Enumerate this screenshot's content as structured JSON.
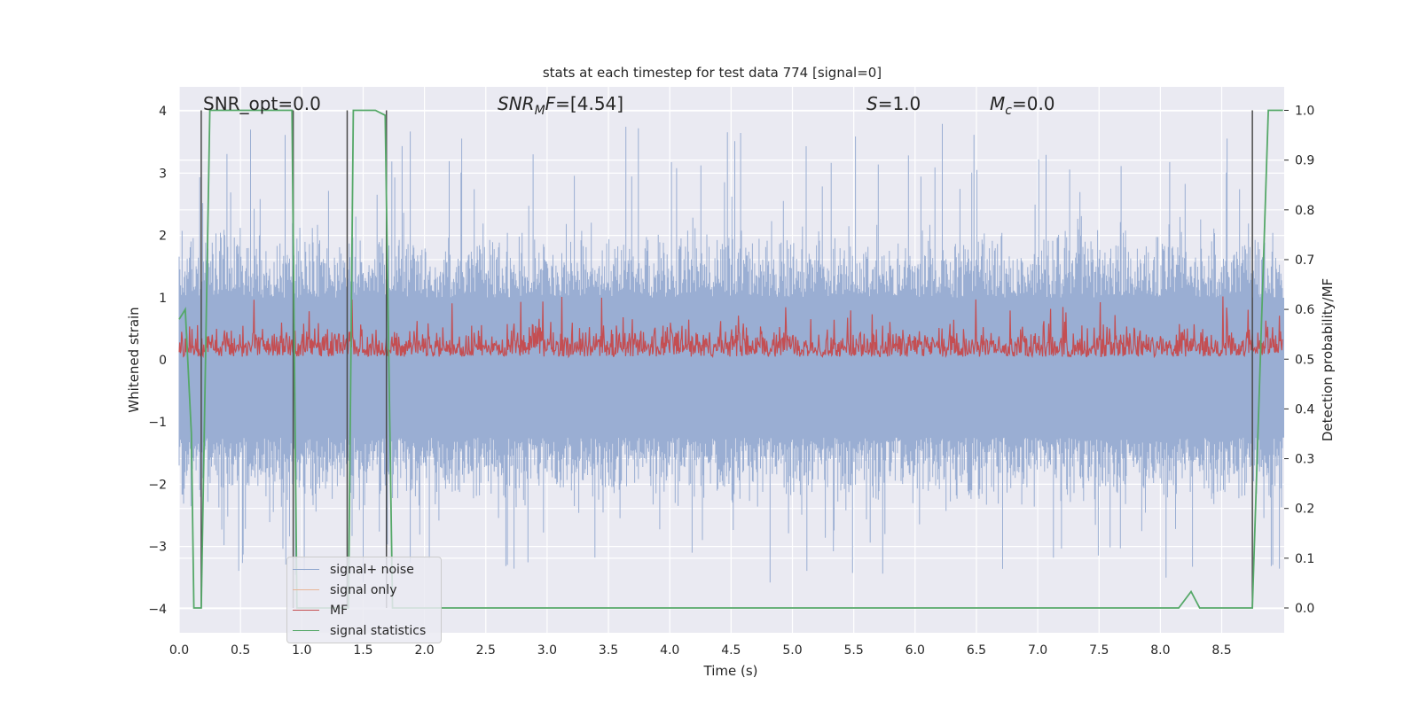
{
  "chart_data": {
    "type": "line",
    "title": "stats at each timestep for test data 774 [signal=0]",
    "xlabel": "Time (s)",
    "ylabel": "Whitened strain",
    "y2label": "Detection probability/MF",
    "xlim": [
      0.0,
      9.0
    ],
    "ylim": [
      -4.38,
      4.38
    ],
    "y2lim": [
      -0.046,
      1.046
    ],
    "xticks": [
      "0.0",
      "0.5",
      "1.0",
      "1.5",
      "2.0",
      "2.5",
      "3.0",
      "3.5",
      "4.0",
      "4.5",
      "5.0",
      "5.5",
      "6.0",
      "6.5",
      "7.0",
      "7.5",
      "8.0",
      "8.5"
    ],
    "yticks": [
      "4",
      "3",
      "2",
      "1",
      "0",
      "−1",
      "−2",
      "−3",
      "−4"
    ],
    "y2ticks": [
      "1.0",
      "0.9",
      "0.8",
      "0.7",
      "0.6",
      "0.5",
      "0.4",
      "0.3",
      "0.2",
      "0.1",
      "0.0"
    ],
    "grid": true,
    "legend_position": "lower-left",
    "annotations": {
      "snr_opt": "SNR_opt=0.0",
      "snr_mf": "SNR_MF=[4.54]",
      "s": "S=1.0",
      "mc": "M_c=0.0"
    },
    "series": [
      {
        "name": "signal+ noise",
        "color": "#4c72b0",
        "axis": "left",
        "envelope_upper_approx": 2.2,
        "envelope_lower_approx": -2.0,
        "extremes": [
          3.9,
          -3.8
        ]
      },
      {
        "name": "signal only",
        "color": "#dd8452",
        "axis": "left",
        "values_approx": 0.0
      },
      {
        "name": "MF",
        "color": "#c44e52",
        "axis": "right",
        "range_approx": [
          0.5,
          0.63
        ]
      },
      {
        "name": "signal statistics",
        "color": "#55a868",
        "axis": "right",
        "points": [
          [
            0.0,
            0.58
          ],
          [
            0.05,
            0.6
          ],
          [
            0.1,
            0.35
          ],
          [
            0.12,
            0.0
          ],
          [
            0.18,
            0.0
          ],
          [
            0.25,
            1.0
          ],
          [
            0.92,
            1.0
          ],
          [
            0.96,
            0.0
          ],
          [
            1.38,
            0.0
          ],
          [
            1.42,
            1.0
          ],
          [
            1.6,
            1.0
          ],
          [
            1.68,
            0.99
          ],
          [
            1.74,
            0.0
          ],
          [
            8.15,
            0.0
          ],
          [
            8.25,
            0.033
          ],
          [
            8.32,
            0.0
          ],
          [
            8.75,
            0.0
          ],
          [
            8.88,
            1.0
          ],
          [
            9.0,
            1.0
          ]
        ]
      }
    ],
    "vertical_markers_s": [
      0.18,
      0.93,
      1.37,
      1.69,
      8.75
    ]
  }
}
